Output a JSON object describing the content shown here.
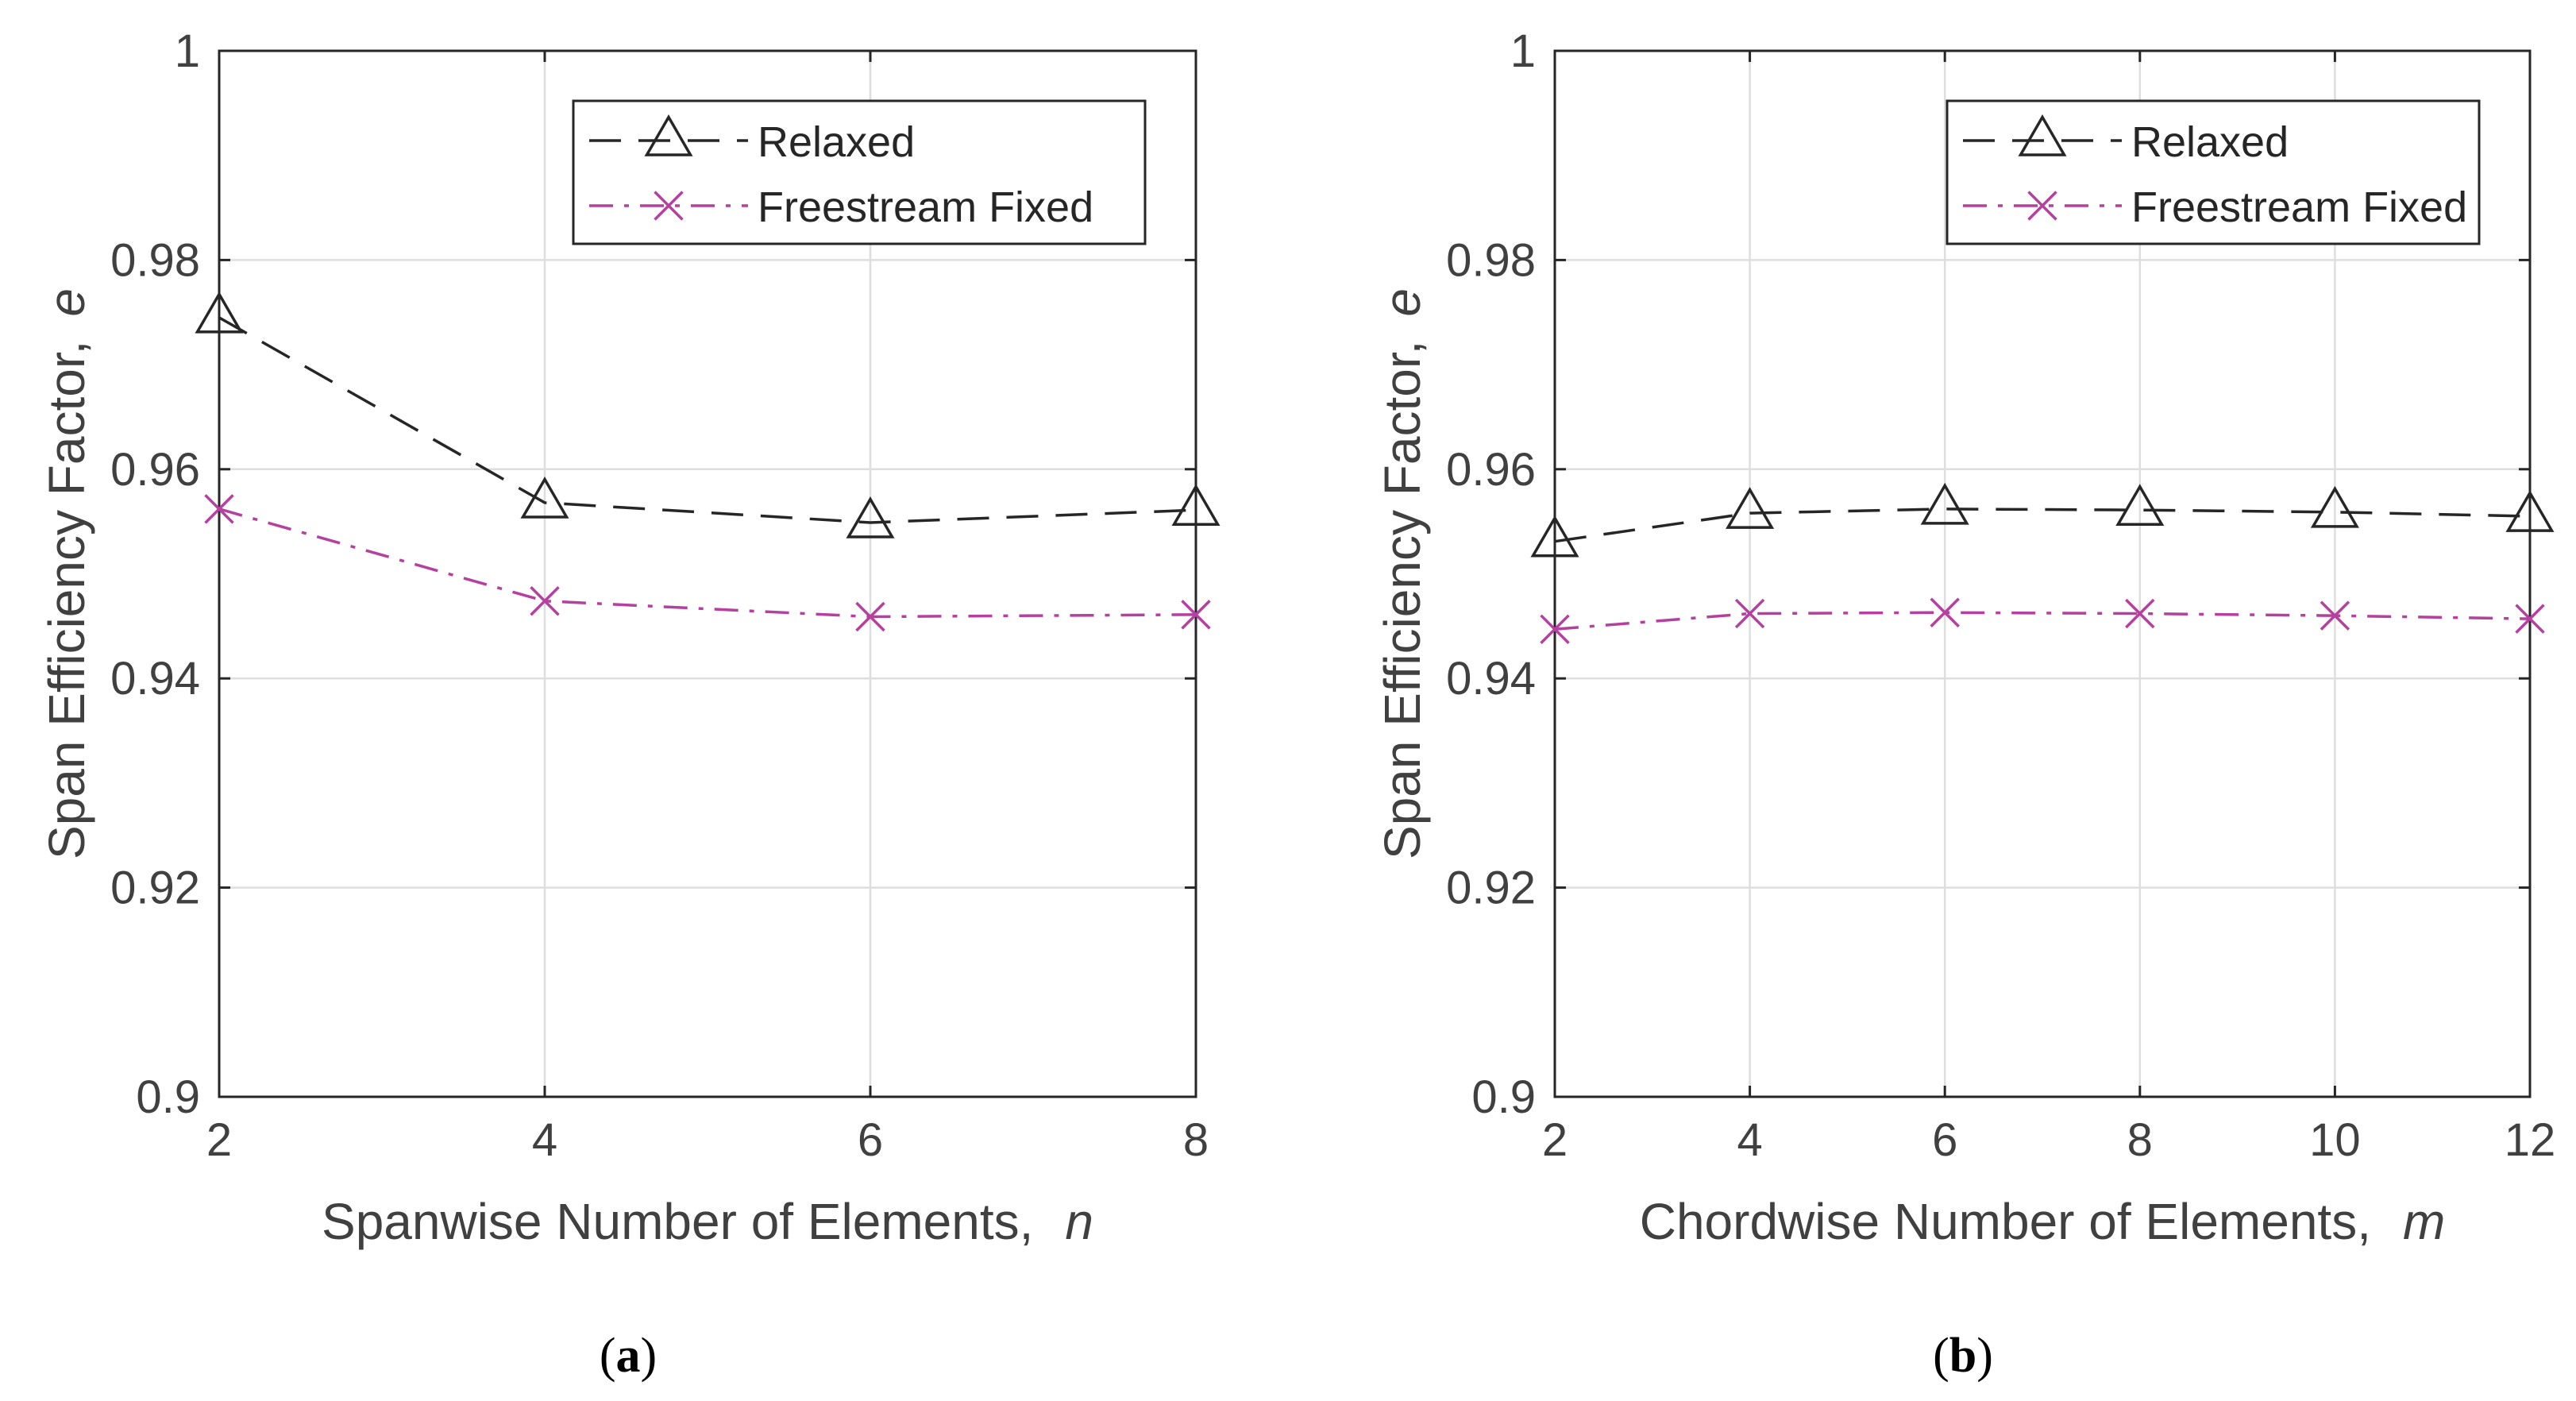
{
  "chart_data": [
    {
      "type": "line",
      "panel_caption": {
        "open": "(",
        "letter": "a",
        "close": ")"
      },
      "xlabel": "Spanwise Number of Elements,",
      "xlabel_var": "n",
      "ylabel": "Span Efficiency Factor,",
      "ylabel_var": "e",
      "xlim": [
        2,
        8
      ],
      "ylim": [
        0.9,
        1.0
      ],
      "xticks": [
        2,
        4,
        6,
        8
      ],
      "xtick_labels": [
        "2",
        "4",
        "6",
        "8"
      ],
      "yticks": [
        0.9,
        0.92,
        0.94,
        0.96,
        0.98,
        1.0
      ],
      "ytick_labels": [
        "0.9",
        "0.92",
        "0.94",
        "0.96",
        "0.98",
        "1"
      ],
      "grid": true,
      "legend_position": "top-right",
      "x": [
        2,
        4,
        6,
        8
      ],
      "series": [
        {
          "name": "Relaxed",
          "marker": "triangle",
          "line_style": "dashed",
          "color": "#262626",
          "values": [
            0.9745,
            0.9568,
            0.9549,
            0.9561
          ]
        },
        {
          "name": "Freestream Fixed",
          "marker": "x",
          "line_style": "dash-dot",
          "color": "#B5409F",
          "values": [
            0.9562,
            0.9474,
            0.9459,
            0.9461
          ]
        }
      ]
    },
    {
      "type": "line",
      "panel_caption": {
        "open": "(",
        "letter": "b",
        "close": ")"
      },
      "xlabel": "Chordwise Number of Elements,",
      "xlabel_var": "m",
      "ylabel": "Span Efficiency Factor,",
      "ylabel_var": "e",
      "xlim": [
        2,
        12
      ],
      "ylim": [
        0.9,
        1.0
      ],
      "xticks": [
        2,
        4,
        6,
        8,
        10,
        12
      ],
      "xtick_labels": [
        "2",
        "4",
        "6",
        "8",
        "10",
        "12"
      ],
      "yticks": [
        0.9,
        0.92,
        0.94,
        0.96,
        0.98,
        1.0
      ],
      "ytick_labels": [
        "0.9",
        "0.92",
        "0.94",
        "0.96",
        "0.98",
        "1"
      ],
      "grid": true,
      "legend_position": "top-right",
      "x": [
        2,
        4,
        6,
        8,
        10,
        12
      ],
      "series": [
        {
          "name": "Relaxed",
          "marker": "triangle",
          "line_style": "dashed",
          "color": "#262626",
          "values": [
            0.9531,
            0.9558,
            0.9562,
            0.9561,
            0.9559,
            0.9555
          ]
        },
        {
          "name": "Freestream Fixed",
          "marker": "x",
          "line_style": "dash-dot",
          "color": "#B5409F",
          "values": [
            0.9447,
            0.9462,
            0.9463,
            0.9462,
            0.946,
            0.9457
          ]
        }
      ]
    }
  ]
}
